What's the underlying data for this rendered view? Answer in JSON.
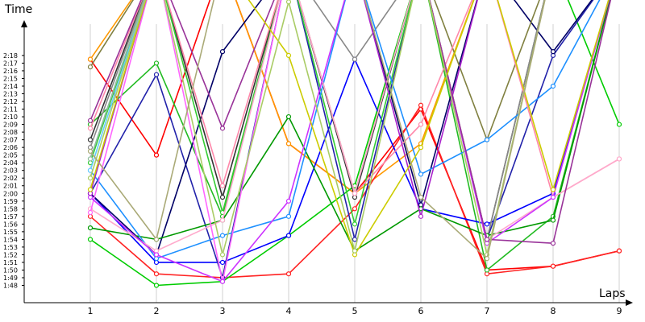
{
  "chart_data": {
    "type": "line",
    "title": "",
    "xlabel": "Laps",
    "ylabel": "Time",
    "x": [
      1,
      2,
      3,
      4,
      5,
      6,
      7,
      8,
      9
    ],
    "x_tick_labels": [
      "1",
      "2",
      "3",
      "4",
      "5",
      "6",
      "7",
      "8",
      "9"
    ],
    "y_tick_labels": [
      "1:48",
      "1:49",
      "1:50",
      "1:51",
      "1:52",
      "1:53",
      "1:54",
      "1:55",
      "1:56",
      "1:57",
      "1:58",
      "1:59",
      "2:00",
      "2:01",
      "2:02",
      "2:03",
      "2:04",
      "2:05",
      "2:06",
      "2:07",
      "2:08",
      "2:09",
      "2:10",
      "2:11",
      "2:12",
      "2:13",
      "2:14",
      "2:15",
      "2:16",
      "2:17",
      "2:18"
    ],
    "ylim_seconds": [
      104,
      140
    ],
    "ymin_seconds": 108,
    "grid": "vertical",
    "legend": "none",
    "series": [
      {
        "color": "#ff0000",
        "values": [
          137.5,
          125,
          150,
          126.5,
          120,
          131,
          110,
          110.5,
          112.5
        ]
      },
      {
        "color": "#ff9900",
        "values": [
          137.5,
          150,
          150,
          126.5,
          120,
          126.5,
          150,
          150,
          150
        ]
      },
      {
        "color": "#ff2222",
        "values": [
          117,
          109.5,
          109,
          109.5,
          118,
          131.5,
          109.5,
          110.5,
          112.5
        ]
      },
      {
        "color": "#00cc00",
        "values": [
          114,
          108,
          108.5,
          114.5,
          121,
          150,
          150,
          150,
          129
        ]
      },
      {
        "color": "#22bb22",
        "values": [
          129,
          137,
          117,
          150,
          120,
          150,
          110,
          117,
          150
        ]
      },
      {
        "color": "#0000ff",
        "values": [
          120,
          111,
          111,
          114.5,
          137.5,
          118,
          116,
          120,
          150
        ]
      },
      {
        "color": "#2222aa",
        "values": [
          120,
          135.5,
          109,
          150,
          114,
          150,
          114,
          138,
          150
        ]
      },
      {
        "color": "#000066",
        "values": [
          120,
          112,
          138.5,
          150,
          150,
          118.5,
          150,
          138.5,
          150
        ]
      },
      {
        "color": "#333333",
        "values": [
          127,
          150,
          119.5,
          150,
          119.5,
          150,
          114,
          150,
          150
        ]
      },
      {
        "color": "#888888",
        "values": [
          126,
          150,
          150,
          150,
          137.5,
          150,
          114,
          150,
          150
        ]
      },
      {
        "color": "#808040",
        "values": [
          136.5,
          150,
          150,
          150,
          150,
          150,
          127,
          150,
          150
        ]
      },
      {
        "color": "#009900",
        "values": [
          115.5,
          114,
          116.5,
          130,
          112.5,
          118,
          114.5,
          116.5,
          150
        ]
      },
      {
        "color": "#33cc33",
        "values": [
          124,
          150,
          117.5,
          150,
          116,
          150,
          150,
          150,
          150
        ]
      },
      {
        "color": "#00cccc",
        "values": [
          124.5,
          150,
          150,
          150,
          150,
          150,
          150,
          150,
          150
        ]
      },
      {
        "color": "#1e90ff",
        "values": [
          123,
          111.5,
          114.5,
          117,
          150,
          122.5,
          127,
          134,
          150
        ]
      },
      {
        "color": "#66ccff",
        "values": [
          123,
          150,
          150,
          150,
          150,
          150,
          150,
          150,
          150
        ]
      },
      {
        "color": "#ff88aa",
        "values": [
          128.5,
          150,
          121,
          150,
          120,
          129,
          150,
          119.5,
          124.5
        ]
      },
      {
        "color": "#ffaacc",
        "values": [
          118,
          112.5,
          116.5,
          150,
          120,
          150,
          114,
          119.5,
          124.5
        ]
      },
      {
        "color": "#ff66ff",
        "values": [
          117.5,
          150,
          108.5,
          150,
          150,
          150,
          150,
          150,
          150
        ]
      },
      {
        "color": "#cc33ff",
        "values": [
          119.5,
          112,
          108.5,
          119,
          150,
          150,
          113.5,
          119.5,
          150
        ]
      },
      {
        "color": "#aa22cc",
        "values": [
          120,
          150,
          150,
          150,
          150,
          117,
          150,
          150,
          150
        ]
      },
      {
        "color": "#993399",
        "values": [
          129.5,
          150,
          128.5,
          150,
          150,
          150,
          114,
          113.5,
          150
        ]
      },
      {
        "color": "#cccc00",
        "values": [
          120.5,
          150,
          150,
          138,
          112,
          126,
          150,
          120.5,
          150
        ]
      },
      {
        "color": "#aacc66",
        "values": [
          122,
          150,
          112,
          145,
          112.5,
          150,
          112,
          150,
          150
        ]
      },
      {
        "color": "#99bb99",
        "values": [
          124.5,
          150,
          150,
          150,
          150,
          150,
          150,
          150,
          150
        ]
      },
      {
        "color": "#aaaa77",
        "values": [
          125.5,
          114,
          150,
          150,
          150,
          119.5,
          111.5,
          150,
          150
        ]
      }
    ]
  }
}
